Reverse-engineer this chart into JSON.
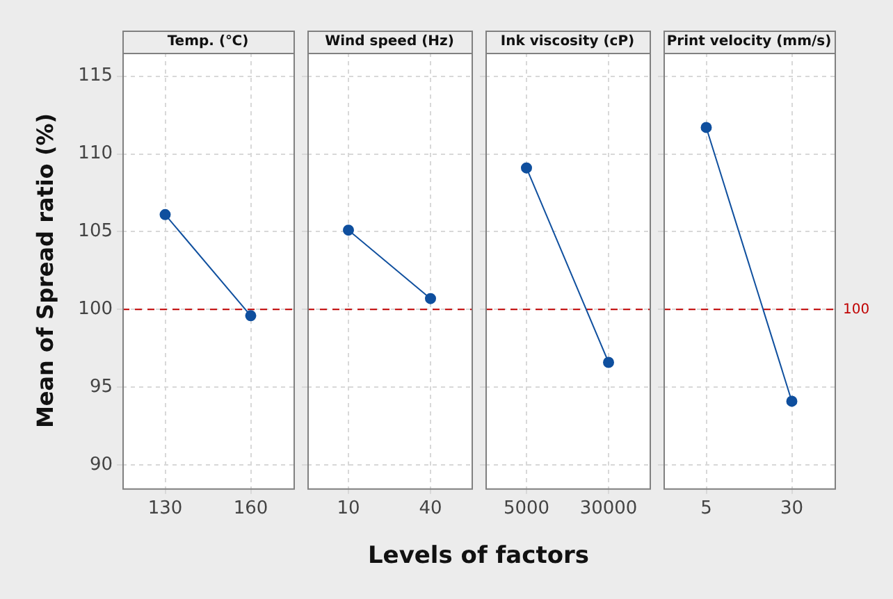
{
  "chart_data": [
    {
      "type": "line",
      "title": "Temp. (℃)",
      "ylabel": "Mean of Spread ratio (%)",
      "xlabel": "Levels of factors",
      "categories": [
        "130",
        "160"
      ],
      "values": [
        106.1,
        99.6
      ],
      "color": "#0f4f9e",
      "ylim": [
        88.5,
        116.5
      ],
      "yticks": [
        90,
        95,
        100,
        105,
        110,
        115
      ],
      "grid": true,
      "marker": "circle",
      "ref_lines": [
        {
          "axis": "y",
          "value": 100,
          "color": "#c00000",
          "line_style": "dashed"
        }
      ]
    },
    {
      "type": "line",
      "title": "Wind speed (Hz)",
      "categories": [
        "10",
        "40"
      ],
      "values": [
        105.1,
        100.7
      ],
      "color": "#0f4f9e",
      "ylim": [
        88.5,
        116.5
      ],
      "yticks": [
        90,
        95,
        100,
        105,
        110,
        115
      ],
      "grid": true,
      "marker": "circle",
      "tick_labels": "x",
      "ref_lines": [
        {
          "axis": "y",
          "value": 100,
          "color": "#c00000",
          "line_style": "dashed"
        }
      ]
    },
    {
      "type": "line",
      "title": "Ink viscosity (cP)",
      "categories": [
        "5000",
        "30000"
      ],
      "values": [
        109.1,
        96.6
      ],
      "color": "#0f4f9e",
      "ylim": [
        88.5,
        116.5
      ],
      "yticks": [
        90,
        95,
        100,
        105,
        110,
        115
      ],
      "grid": true,
      "marker": "circle",
      "tick_labels": "x",
      "ref_lines": [
        {
          "axis": "y",
          "value": 100,
          "color": "#c00000",
          "line_style": "dashed"
        }
      ]
    },
    {
      "type": "line",
      "title": "Print velocity (mm/s)",
      "categories": [
        "5",
        "30"
      ],
      "values": [
        111.7,
        94.1
      ],
      "color": "#0f4f9e",
      "ylim": [
        88.5,
        116.5
      ],
      "yticks": [
        90,
        95,
        100,
        105,
        110,
        115
      ],
      "grid": true,
      "marker": "circle",
      "tick_labels": "x",
      "ref_lines": [
        {
          "axis": "y",
          "value": 100,
          "label": "100",
          "color": "#c00000",
          "line_style": "dashed"
        }
      ]
    }
  ]
}
